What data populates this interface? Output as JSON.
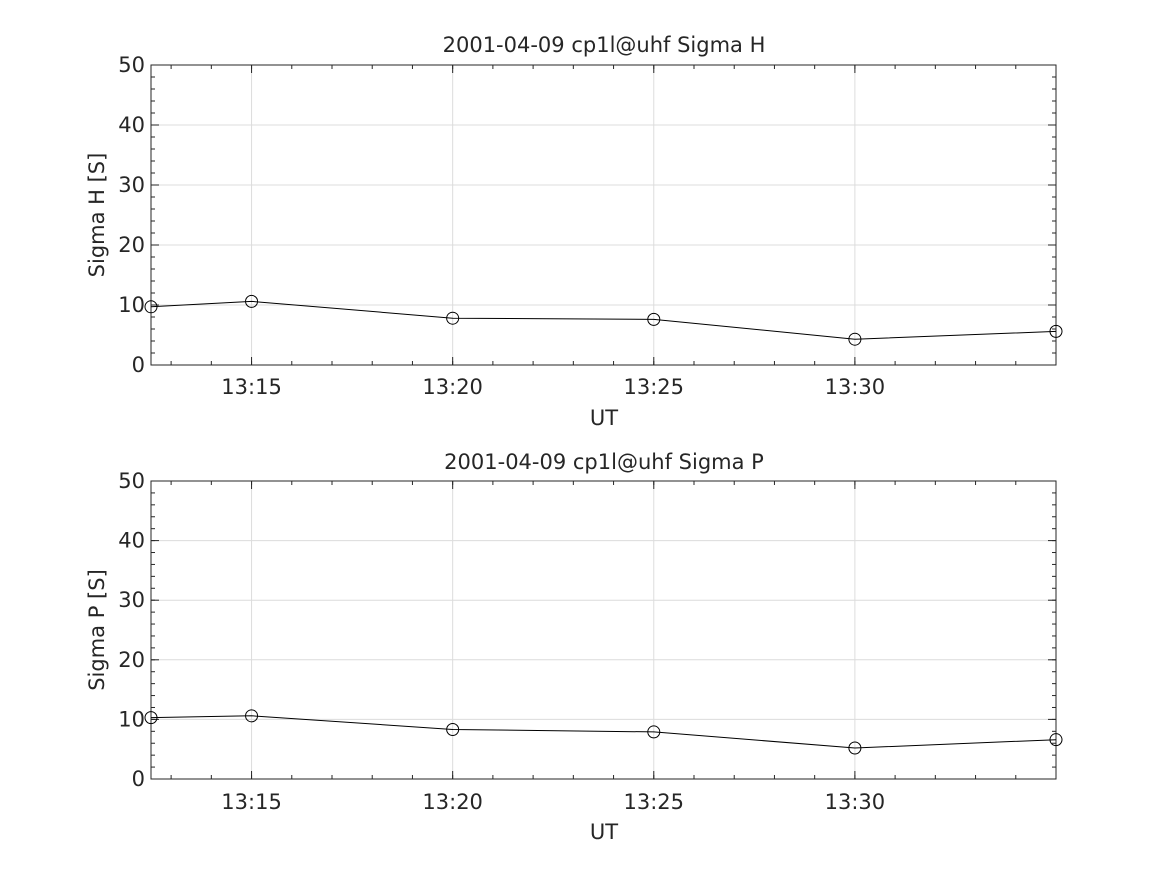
{
  "chart_data": [
    {
      "type": "line",
      "title": "2001-04-09  cp1l@uhf Sigma H",
      "xlabel": "UT",
      "ylabel": "Sigma H [S]",
      "ylim": [
        0,
        50
      ],
      "xlim": [
        "13:12:30",
        "13:35:00"
      ],
      "grid": true,
      "x_ticks": [
        "13:15",
        "13:20",
        "13:25",
        "13:30"
      ],
      "y_ticks": [
        "0",
        "10",
        "20",
        "30",
        "40",
        "50"
      ],
      "series": [
        {
          "x": [
            "13:12:30",
            "13:15:00",
            "13:20:00",
            "13:25:00",
            "13:30:00",
            "13:35:00"
          ],
          "values": [
            9.7,
            10.6,
            7.8,
            7.6,
            4.3,
            5.6
          ]
        }
      ]
    },
    {
      "type": "line",
      "title": "2001-04-09  cp1l@uhf Sigma P",
      "xlabel": "UT",
      "ylabel": "Sigma P [S]",
      "ylim": [
        0,
        50
      ],
      "xlim": [
        "13:12:30",
        "13:35:00"
      ],
      "grid": true,
      "x_ticks": [
        "13:15",
        "13:20",
        "13:25",
        "13:30"
      ],
      "y_ticks": [
        "0",
        "10",
        "20",
        "30",
        "40",
        "50"
      ],
      "series": [
        {
          "x": [
            "13:12:30",
            "13:15:00",
            "13:20:00",
            "13:25:00",
            "13:30:00",
            "13:35:00"
          ],
          "values": [
            10.3,
            10.6,
            8.3,
            7.9,
            5.2,
            6.6
          ]
        }
      ]
    }
  ]
}
